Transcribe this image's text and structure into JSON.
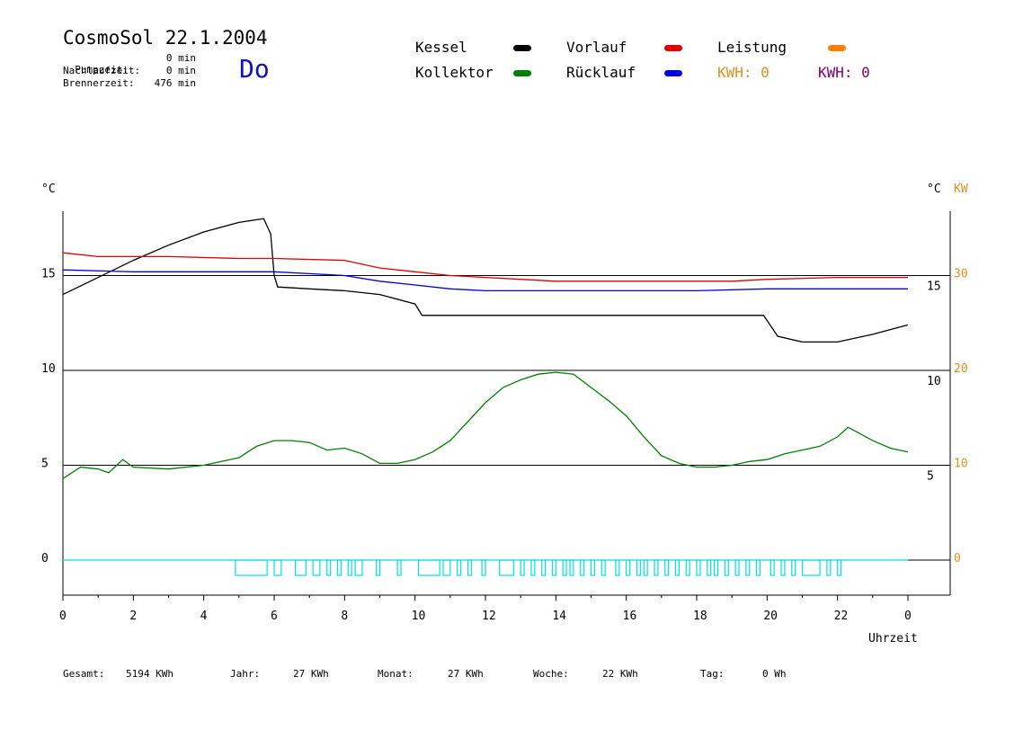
{
  "header": {
    "title": "CosmoSol 22.1.2004",
    "day": "Do",
    "stats": [
      {
        "label": "Pumpzeit:",
        "value": "0 min"
      },
      {
        "label": "Nachlaufzeit:",
        "value": "0 min"
      },
      {
        "label": "Brennerzeit:",
        "value": "476 min"
      }
    ]
  },
  "legend": {
    "kessel": {
      "label": "Kessel",
      "color": "#000000"
    },
    "kollektor": {
      "label": "Kollektor",
      "color": "#008000"
    },
    "vorlauf": {
      "label": "Vorlauf",
      "color": "#e00000"
    },
    "ruecklauf": {
      "label": "Rücklauf",
      "color": "#0000e0"
    },
    "leistung": {
      "label": "Leistung",
      "color": "#ff8000"
    },
    "kwh_orange": {
      "label": "KWH: 0",
      "color": "#e09020"
    },
    "kwh_purple": {
      "label": "KWH: 0",
      "color": "#800080"
    }
  },
  "footer": {
    "gesamt": {
      "label": "Gesamt:",
      "value": "5194 KWh"
    },
    "jahr": {
      "label": "Jahr:",
      "value": "27 KWh"
    },
    "monat": {
      "label": "Monat:",
      "value": "27 KWh"
    },
    "woche": {
      "label": "Woche:",
      "value": "22 KWh"
    },
    "tag": {
      "label": "Tag:",
      "value": "0 Wh"
    }
  },
  "chart_data": {
    "type": "line",
    "xlabel": "Uhrzeit",
    "x_ticks": [
      "0",
      "2",
      "4",
      "6",
      "8",
      "10",
      "12",
      "14",
      "16",
      "18",
      "20",
      "22",
      "0"
    ],
    "xlim": [
      0,
      24
    ],
    "left_axis": {
      "unit": "°C",
      "ticks": [
        0,
        5,
        10,
        15
      ],
      "ylim": [
        -1.8,
        18.5
      ]
    },
    "right_axis": {
      "unit": "°C",
      "unit2": "KW",
      "inner_ticks": [
        5,
        10,
        15
      ],
      "outer_ticks": [
        0,
        10,
        20,
        30
      ],
      "outer_color": "#e09020"
    },
    "series": [
      {
        "name": "Kessel",
        "color": "#000000",
        "points": [
          [
            0,
            14.0
          ],
          [
            1,
            14.9
          ],
          [
            2,
            15.8
          ],
          [
            3,
            16.6
          ],
          [
            4,
            17.3
          ],
          [
            5,
            17.8
          ],
          [
            5.7,
            18.0
          ],
          [
            5.9,
            17.2
          ],
          [
            6.0,
            15.0
          ],
          [
            6.1,
            14.4
          ],
          [
            7,
            14.3
          ],
          [
            8,
            14.2
          ],
          [
            9,
            14.0
          ],
          [
            10,
            13.5
          ],
          [
            10.2,
            12.9
          ],
          [
            12,
            12.9
          ],
          [
            14,
            12.9
          ],
          [
            16,
            12.9
          ],
          [
            18,
            12.9
          ],
          [
            19.9,
            12.9
          ],
          [
            20.3,
            11.8
          ],
          [
            21,
            11.5
          ],
          [
            22,
            11.5
          ],
          [
            23,
            11.9
          ],
          [
            24,
            12.4
          ]
        ]
      },
      {
        "name": "Vorlauf",
        "color": "#e00000",
        "points": [
          [
            0,
            16.2
          ],
          [
            1,
            16.0
          ],
          [
            3,
            16.0
          ],
          [
            5,
            15.9
          ],
          [
            6,
            15.9
          ],
          [
            8,
            15.8
          ],
          [
            9,
            15.4
          ],
          [
            10,
            15.2
          ],
          [
            11,
            15.0
          ],
          [
            12,
            14.9
          ],
          [
            13,
            14.8
          ],
          [
            14,
            14.7
          ],
          [
            16,
            14.7
          ],
          [
            18,
            14.7
          ],
          [
            19,
            14.7
          ],
          [
            20,
            14.8
          ],
          [
            22,
            14.9
          ],
          [
            24,
            14.9
          ]
        ]
      },
      {
        "name": "Rücklauf",
        "color": "#0000e0",
        "points": [
          [
            0,
            15.3
          ],
          [
            2,
            15.2
          ],
          [
            4,
            15.2
          ],
          [
            6,
            15.2
          ],
          [
            7,
            15.1
          ],
          [
            8,
            15.0
          ],
          [
            9,
            14.7
          ],
          [
            10,
            14.5
          ],
          [
            11,
            14.3
          ],
          [
            12,
            14.2
          ],
          [
            14,
            14.2
          ],
          [
            16,
            14.2
          ],
          [
            18,
            14.2
          ],
          [
            20,
            14.3
          ],
          [
            22,
            14.3
          ],
          [
            24,
            14.3
          ]
        ]
      },
      {
        "name": "Kollektor",
        "color": "#008000",
        "points": [
          [
            0,
            4.3
          ],
          [
            0.5,
            4.9
          ],
          [
            1,
            4.8
          ],
          [
            1.3,
            4.6
          ],
          [
            1.7,
            5.3
          ],
          [
            2,
            4.9
          ],
          [
            3,
            4.8
          ],
          [
            4,
            5.0
          ],
          [
            5,
            5.4
          ],
          [
            5.5,
            6.0
          ],
          [
            6,
            6.3
          ],
          [
            6.5,
            6.3
          ],
          [
            7,
            6.2
          ],
          [
            7.5,
            5.8
          ],
          [
            8,
            5.9
          ],
          [
            8.5,
            5.6
          ],
          [
            9,
            5.1
          ],
          [
            9.5,
            5.1
          ],
          [
            10,
            5.3
          ],
          [
            10.5,
            5.7
          ],
          [
            11,
            6.3
          ],
          [
            11.5,
            7.3
          ],
          [
            12,
            8.3
          ],
          [
            12.5,
            9.1
          ],
          [
            13,
            9.5
          ],
          [
            13.5,
            9.8
          ],
          [
            14,
            9.9
          ],
          [
            14.5,
            9.8
          ],
          [
            15,
            9.1
          ],
          [
            15.5,
            8.4
          ],
          [
            16,
            7.6
          ],
          [
            16.5,
            6.5
          ],
          [
            17,
            5.5
          ],
          [
            17.5,
            5.1
          ],
          [
            18,
            4.9
          ],
          [
            18.5,
            4.9
          ],
          [
            19,
            5.0
          ],
          [
            19.5,
            5.2
          ],
          [
            20,
            5.3
          ],
          [
            20.5,
            5.6
          ],
          [
            21,
            5.8
          ],
          [
            21.5,
            6.0
          ],
          [
            22,
            6.5
          ],
          [
            22.3,
            7.0
          ],
          [
            22.6,
            6.7
          ],
          [
            23,
            6.3
          ],
          [
            23.5,
            5.9
          ],
          [
            24,
            5.7
          ]
        ]
      },
      {
        "name": "Leistung",
        "color": "#00e0e0",
        "blocks": [
          [
            4.9,
            5.8
          ],
          [
            6.0,
            6.2
          ],
          [
            6.6,
            6.9
          ],
          [
            7.1,
            7.3
          ],
          [
            7.5,
            7.6
          ],
          [
            7.8,
            7.9
          ],
          [
            8.1,
            8.2
          ],
          [
            8.3,
            8.5
          ],
          [
            8.9,
            9.0
          ],
          [
            9.5,
            9.6
          ],
          [
            10.1,
            10.7
          ],
          [
            10.8,
            11.0
          ],
          [
            11.2,
            11.3
          ],
          [
            11.5,
            11.6
          ],
          [
            11.9,
            12.0
          ],
          [
            12.4,
            12.8
          ],
          [
            13.0,
            13.1
          ],
          [
            13.3,
            13.4
          ],
          [
            13.6,
            13.7
          ],
          [
            13.9,
            14.0
          ],
          [
            14.2,
            14.3
          ],
          [
            14.4,
            14.5
          ],
          [
            14.7,
            14.8
          ],
          [
            15.0,
            15.1
          ],
          [
            15.3,
            15.4
          ],
          [
            15.7,
            15.8
          ],
          [
            16.0,
            16.1
          ],
          [
            16.3,
            16.4
          ],
          [
            16.5,
            16.6
          ],
          [
            16.8,
            16.9
          ],
          [
            17.1,
            17.2
          ],
          [
            17.4,
            17.5
          ],
          [
            17.7,
            17.8
          ],
          [
            18.0,
            18.1
          ],
          [
            18.3,
            18.4
          ],
          [
            18.5,
            18.6
          ],
          [
            18.8,
            18.9
          ],
          [
            19.1,
            19.2
          ],
          [
            19.4,
            19.5
          ],
          [
            19.7,
            19.8
          ],
          [
            20.1,
            20.2
          ],
          [
            20.4,
            20.5
          ],
          [
            20.7,
            20.8
          ],
          [
            21.0,
            21.5
          ],
          [
            21.7,
            21.8
          ],
          [
            22.0,
            22.1
          ]
        ]
      }
    ]
  }
}
